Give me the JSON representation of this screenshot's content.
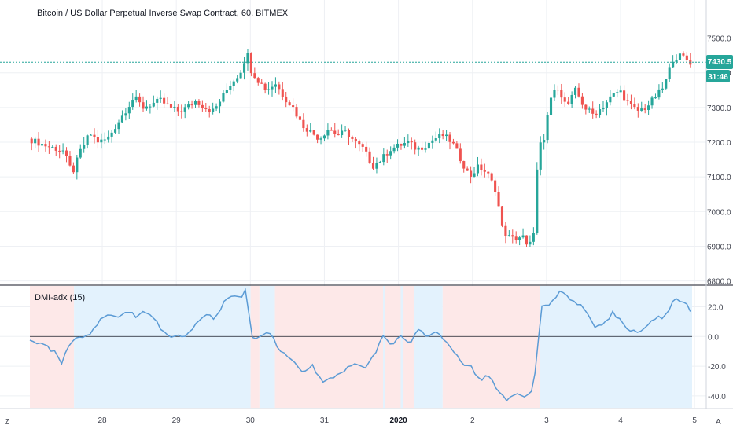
{
  "main_title": "Bitcoin / US Dollar Perpetual Inverse Swap Contract, 60, BITMEX",
  "indicator_title": "DMI-adx (15)",
  "price_badge": "7430.5",
  "countdown_badge": "31:46",
  "corner_left": "Z",
  "corner_right": "A",
  "colors": {
    "up": "#26a69a",
    "down": "#ef5350",
    "adx_line": "#5b9bd5",
    "shade_pos": "#e3f2fd",
    "shade_neg": "#fde8e8",
    "price_line": "#26a69a"
  },
  "chart_data": [
    {
      "type": "candlestick",
      "title": "Bitcoin / US Dollar Perpetual Inverse Swap Contract, 60, BITMEX",
      "y_ticks": [
        "7500.0",
        "7400.0",
        "7300.0",
        "7200.0",
        "7100.0",
        "7000.0",
        "6900.0",
        "6800.0"
      ],
      "ylim": [
        6790,
        7610
      ],
      "current_price": 7430.5,
      "x_ticks": [
        "28",
        "29",
        "30",
        "31",
        "2020",
        "2",
        "3",
        "4",
        "5"
      ],
      "close_path": [
        [
          0,
          7210
        ],
        [
          2,
          7190
        ],
        [
          4,
          7175
        ],
        [
          5,
          7110
        ],
        [
          6,
          7180
        ],
        [
          7,
          7225
        ],
        [
          8,
          7200
        ],
        [
          9,
          7210
        ],
        [
          10,
          7250
        ],
        [
          11,
          7290
        ],
        [
          12,
          7330
        ],
        [
          13,
          7300
        ],
        [
          14,
          7310
        ],
        [
          15,
          7320
        ],
        [
          16,
          7300
        ],
        [
          17,
          7290
        ],
        [
          18,
          7300
        ],
        [
          19,
          7320
        ],
        [
          20,
          7300
        ],
        [
          21,
          7290
        ],
        [
          22,
          7330
        ],
        [
          23,
          7370
        ],
        [
          24,
          7400
        ],
        [
          24.8,
          7460
        ],
        [
          25.2,
          7410
        ],
        [
          26,
          7380
        ],
        [
          27,
          7350
        ],
        [
          28,
          7370
        ],
        [
          29,
          7330
        ],
        [
          30,
          7300
        ],
        [
          31,
          7250
        ],
        [
          32,
          7230
        ],
        [
          33,
          7210
        ],
        [
          34,
          7240
        ],
        [
          35,
          7220
        ],
        [
          36,
          7230
        ],
        [
          37,
          7200
        ],
        [
          38,
          7180
        ],
        [
          39,
          7130
        ],
        [
          40,
          7150
        ],
        [
          41,
          7180
        ],
        [
          42,
          7190
        ],
        [
          43,
          7200
        ],
        [
          44,
          7180
        ],
        [
          45,
          7190
        ],
        [
          46,
          7210
        ],
        [
          47,
          7220
        ],
        [
          48,
          7200
        ],
        [
          49,
          7150
        ],
        [
          50,
          7100
        ],
        [
          51,
          7130
        ],
        [
          52,
          7110
        ],
        [
          53,
          7060
        ],
        [
          53.7,
          6950
        ],
        [
          54.2,
          6930
        ],
        [
          55,
          6920
        ],
        [
          56,
          6930
        ],
        [
          56.6,
          6890
        ],
        [
          57.2,
          6930
        ],
        [
          57.8,
          7190
        ],
        [
          58.5,
          7200
        ],
        [
          59,
          7320
        ],
        [
          60,
          7360
        ],
        [
          61,
          7300
        ],
        [
          62,
          7350
        ],
        [
          63,
          7300
        ],
        [
          64,
          7280
        ],
        [
          65,
          7300
        ],
        [
          66,
          7330
        ],
        [
          67,
          7350
        ],
        [
          68,
          7310
        ],
        [
          69,
          7290
        ],
        [
          70,
          7300
        ],
        [
          71,
          7330
        ],
        [
          72,
          7360
        ],
        [
          73,
          7440
        ],
        [
          74,
          7450
        ],
        [
          75,
          7430
        ]
      ]
    },
    {
      "type": "line",
      "title": "DMI-adx (15)",
      "series": [
        {
          "name": "DMI-adx (15)",
          "x": "day_index",
          "values_path": [
            [
              0,
              -2
            ],
            [
              1,
              -5
            ],
            [
              2,
              -6
            ],
            [
              2.5,
              -10
            ],
            [
              3,
              -8
            ],
            [
              3.5,
              -20
            ],
            [
              4,
              -12
            ],
            [
              5,
              0
            ],
            [
              6,
              0
            ],
            [
              7,
              2
            ],
            [
              8,
              12
            ],
            [
              9,
              14
            ],
            [
              10,
              12
            ],
            [
              11,
              18
            ],
            [
              12,
              14
            ],
            [
              13,
              16
            ],
            [
              14,
              12
            ],
            [
              15,
              4
            ],
            [
              16,
              0
            ],
            [
              17,
              0
            ],
            [
              18,
              2
            ],
            [
              19,
              10
            ],
            [
              20,
              14
            ],
            [
              21,
              12
            ],
            [
              22,
              24
            ],
            [
              23,
              28
            ],
            [
              24,
              26
            ],
            [
              24.6,
              34
            ],
            [
              25,
              -2
            ],
            [
              26,
              0
            ],
            [
              27,
              2
            ],
            [
              27.5,
              0
            ],
            [
              28,
              -8
            ],
            [
              29,
              -12
            ],
            [
              30,
              -18
            ],
            [
              31,
              -24
            ],
            [
              32,
              -20
            ],
            [
              33,
              -30
            ],
            [
              34,
              -28
            ],
            [
              35,
              -26
            ],
            [
              36,
              -20
            ],
            [
              37,
              -18
            ],
            [
              38,
              -22
            ],
            [
              39,
              -12
            ],
            [
              40,
              0
            ],
            [
              41,
              -6
            ],
            [
              42,
              0
            ],
            [
              43,
              -4
            ],
            [
              44,
              4
            ],
            [
              45,
              0
            ],
            [
              46,
              2
            ],
            [
              47,
              -2
            ],
            [
              48,
              -10
            ],
            [
              49,
              -18
            ],
            [
              50,
              -20
            ],
            [
              51,
              -30
            ],
            [
              52,
              -26
            ],
            [
              53,
              -36
            ],
            [
              54,
              -44
            ],
            [
              55,
              -38
            ],
            [
              56,
              -40
            ],
            [
              57,
              -36
            ],
            [
              58,
              20
            ],
            [
              59,
              22
            ],
            [
              60,
              30
            ],
            [
              61,
              26
            ],
            [
              62,
              22
            ],
            [
              63,
              18
            ],
            [
              64,
              6
            ],
            [
              65,
              8
            ],
            [
              66,
              16
            ],
            [
              67,
              10
            ],
            [
              68,
              4
            ],
            [
              69,
              2
            ],
            [
              70,
              8
            ],
            [
              71,
              12
            ],
            [
              72,
              14
            ],
            [
              73,
              26
            ],
            [
              74,
              24
            ],
            [
              75,
              16
            ]
          ]
        }
      ],
      "y_ticks": [
        "20.0",
        "0.0",
        "-20.0",
        "-40.0"
      ],
      "ylim": [
        -48,
        34
      ],
      "zero_line": 0,
      "background_shading": "blue when positive trend, red when negative trend"
    }
  ]
}
